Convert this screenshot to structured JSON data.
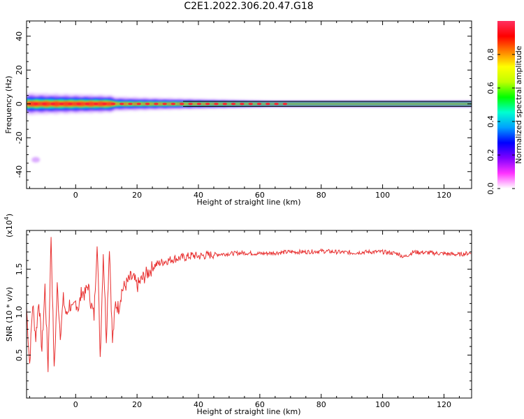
{
  "title": "C2E1.2022.306.20.47.G18",
  "colors": {
    "snr_line": "#e83030",
    "center_line": "#000000",
    "colorbar": [
      "#ffffff",
      "#ff33ff",
      "#7f00ff",
      "#0000ff",
      "#00a0ff",
      "#00ffd0",
      "#00ff00",
      "#c0ff00",
      "#ffff00",
      "#ff8000",
      "#ff0000",
      "#ff3060"
    ]
  },
  "chart_data": [
    {
      "type": "heatmap",
      "xlabel": "Height of straight line (km)",
      "ylabel": "Frequency (Hz)",
      "xlim": [
        -16,
        129
      ],
      "ylim": [
        -50,
        49
      ],
      "xticks": [
        "0",
        "20",
        "40",
        "60",
        "80",
        "100",
        "120"
      ],
      "yticks": [
        "-40",
        "-20",
        "0",
        "20",
        "40"
      ],
      "colorbar": {
        "label": "Normalized spectral amplitude",
        "range": [
          0,
          1
        ],
        "ticks": [
          "0.0",
          "0.2",
          "0.4",
          "0.6",
          "0.8"
        ]
      },
      "ridge_frequency_hz": 0,
      "center_band_hz": [
        -1.5,
        1.5
      ],
      "low_height_spread_hz": [
        -5,
        6
      ],
      "outlier_blob": {
        "height_km": [
          -15,
          -11
        ],
        "freq_hz": [
          -36,
          -30
        ]
      }
    },
    {
      "type": "line",
      "xlabel": "Height of straight line (km)",
      "ylabel": "SNR (10 * v/v)",
      "multiplier": "(x10",
      "multiplier_exp": "4",
      "multiplier_close": ")",
      "xlim": [
        -16,
        129
      ],
      "ylim": [
        0.0,
        1.95
      ],
      "xticks": [
        "0",
        "20",
        "40",
        "60",
        "80",
        "100",
        "120"
      ],
      "yticks": [
        "0.5",
        "1.0",
        "1.5"
      ],
      "series": [
        {
          "values_x": [
            -16,
            -15,
            -14,
            -13,
            -12,
            -11,
            -10,
            -9,
            -8,
            -7,
            -6,
            -5,
            -4,
            -3,
            -2,
            -1,
            0,
            1,
            2,
            3,
            4,
            5,
            6,
            7,
            8,
            9,
            10,
            11,
            12,
            13,
            14,
            15,
            16,
            17,
            18,
            19,
            20,
            22,
            24,
            26,
            28,
            30,
            32,
            34,
            36,
            38,
            40,
            45,
            50,
            55,
            60,
            65,
            70,
            75,
            80,
            85,
            90,
            95,
            100,
            105,
            107,
            110,
            115,
            120,
            125,
            129
          ],
          "values_y": [
            1.05,
            0.4,
            1.1,
            0.7,
            1.15,
            0.55,
            1.3,
            0.35,
            1.9,
            0.3,
            1.3,
            0.75,
            1.15,
            0.95,
            1.1,
            1.0,
            1.12,
            1.05,
            1.25,
            1.2,
            1.32,
            1.1,
            0.95,
            1.85,
            0.48,
            1.7,
            0.7,
            1.78,
            0.65,
            1.1,
            1.05,
            1.25,
            1.3,
            1.35,
            1.4,
            1.38,
            1.3,
            1.4,
            1.48,
            1.55,
            1.58,
            1.6,
            1.62,
            1.63,
            1.64,
            1.66,
            1.65,
            1.67,
            1.68,
            1.69,
            1.68,
            1.69,
            1.7,
            1.7,
            1.71,
            1.7,
            1.69,
            1.7,
            1.7,
            1.68,
            1.64,
            1.7,
            1.69,
            1.68,
            1.67,
            1.69
          ]
        }
      ]
    }
  ]
}
